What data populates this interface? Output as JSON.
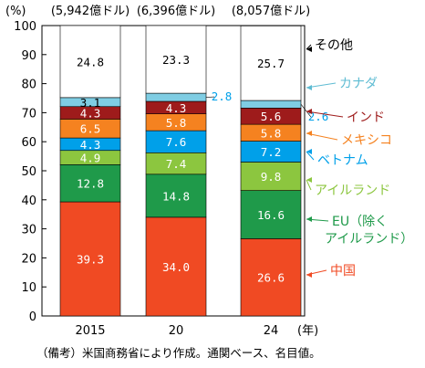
{
  "chart_data": {
    "type": "bar",
    "stacked": true,
    "y_unit": "(%)",
    "x_unit": "(年)",
    "ylim": [
      0,
      100
    ],
    "yticks": [
      0,
      10,
      20,
      30,
      40,
      50,
      60,
      70,
      80,
      90,
      100
    ],
    "categories": [
      "2015",
      "20",
      "24"
    ],
    "totals": [
      "(5,942億ドル)",
      "(6,396億ドル)",
      "(8,057億ドル)"
    ],
    "series": [
      {
        "name": "中国",
        "color": "#f04a23",
        "text_color": "#ffffff",
        "values": [
          39.3,
          34.0,
          26.6
        ],
        "labels": [
          "39.3",
          "34.0",
          "26.6"
        ]
      },
      {
        "name": "EU（除くアイルランド）",
        "color": "#1f9a4a",
        "text_color": "#ffffff",
        "values": [
          12.8,
          14.8,
          16.6
        ],
        "labels": [
          "12.8",
          "14.8",
          "16.6"
        ]
      },
      {
        "name": "アイルランド",
        "color": "#8cc63f",
        "text_color": "#ffffff",
        "values": [
          4.9,
          7.4,
          9.8
        ],
        "labels": [
          "4.9",
          "7.4",
          "9.8"
        ]
      },
      {
        "name": "ベトナム",
        "color": "#00a0e9",
        "text_color": "#ffffff",
        "values": [
          4.3,
          7.6,
          7.2
        ],
        "labels": [
          "4.3",
          "7.6",
          "7.2"
        ]
      },
      {
        "name": "メキシコ",
        "color": "#f58220",
        "text_color": "#ffffff",
        "values": [
          6.5,
          5.8,
          5.8
        ],
        "labels": [
          "6.5",
          "5.8",
          "5.8"
        ]
      },
      {
        "name": "インド",
        "color": "#9e1b1b",
        "text_color": "#ffffff",
        "values": [
          4.3,
          4.3,
          5.6
        ],
        "labels": [
          "4.3",
          "4.3",
          "5.6"
        ]
      },
      {
        "name": "カナダ",
        "color": "#7fcde3",
        "text_color": "#000000",
        "values": [
          3.1,
          2.8,
          2.6
        ],
        "labels": [
          "3.1",
          "2.8",
          "2.6"
        ]
      },
      {
        "name": "その他",
        "color": "#ffffff",
        "text_color": "#000000",
        "values": [
          24.8,
          23.3,
          25.7
        ],
        "labels": [
          "24.8",
          "23.3",
          "25.7"
        ]
      }
    ]
  },
  "note": "（備考）米国商務省により作成。通関ベース、名目値。"
}
